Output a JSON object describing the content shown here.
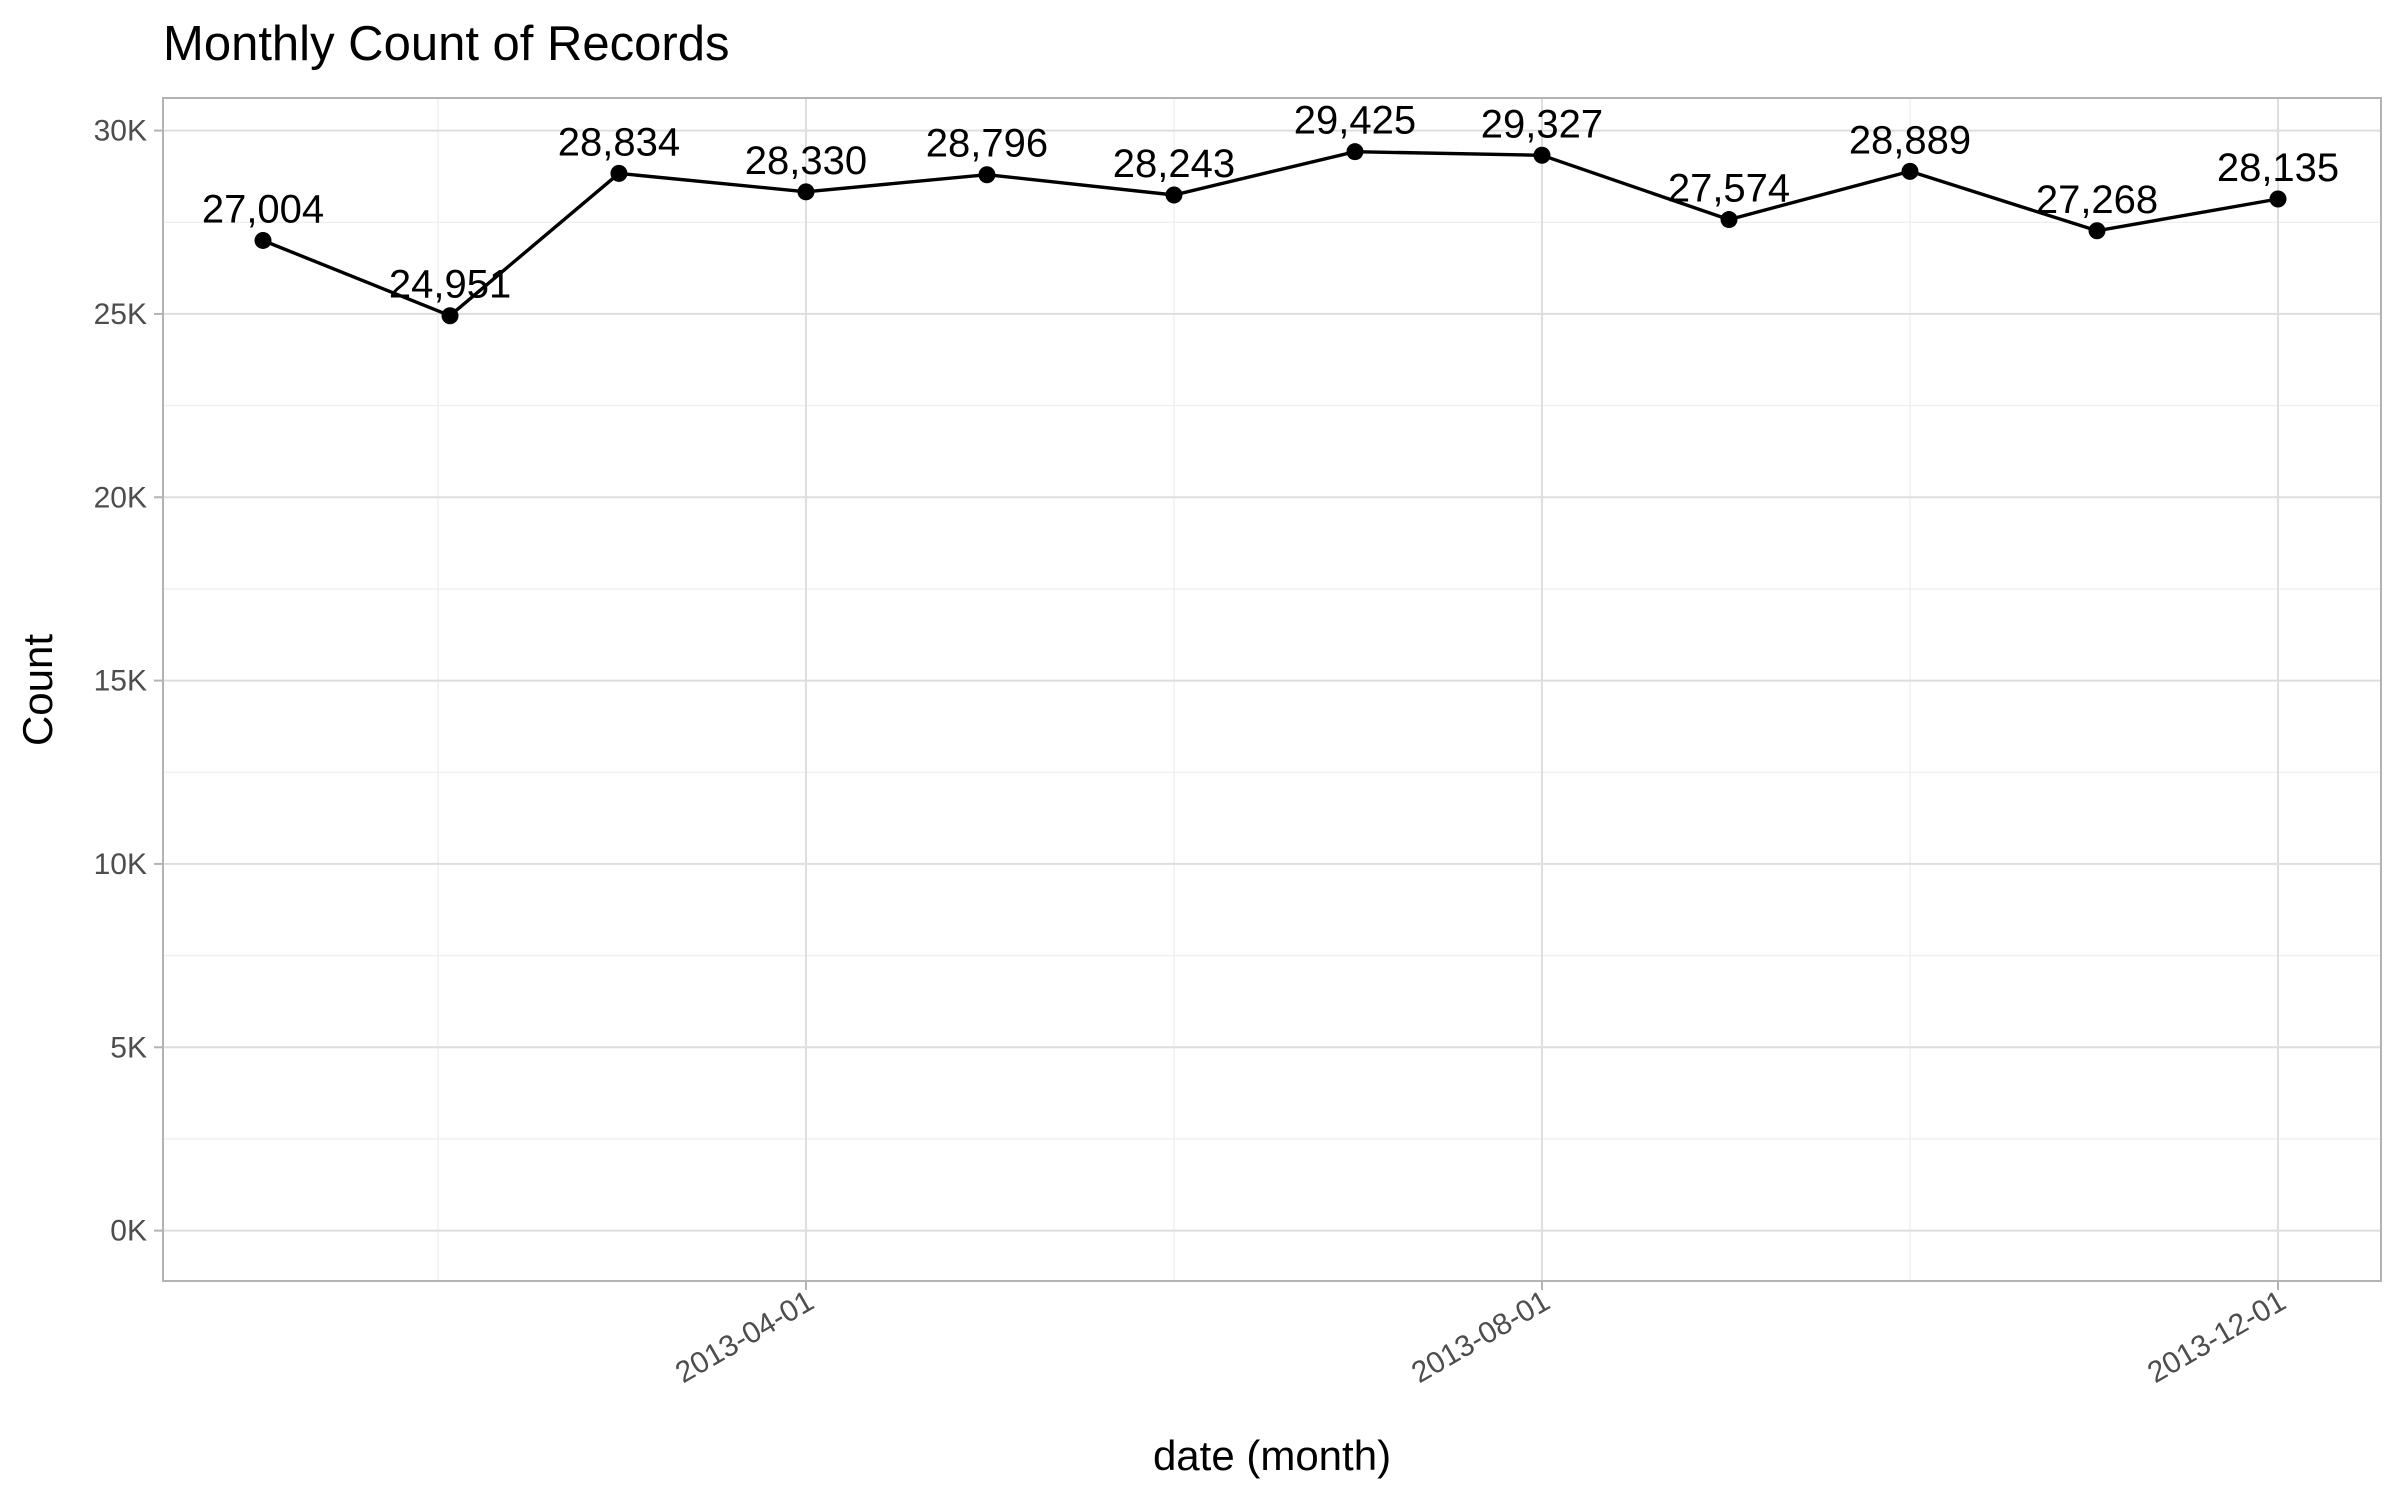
{
  "chart_data": {
    "type": "line",
    "title": "Monthly Count of Records",
    "xlabel": "date (month)",
    "ylabel": "Count",
    "x": [
      "2013-01-01",
      "2013-02-01",
      "2013-03-01",
      "2013-04-01",
      "2013-05-01",
      "2013-06-01",
      "2013-07-01",
      "2013-08-01",
      "2013-09-01",
      "2013-10-01",
      "2013-11-01",
      "2013-12-01"
    ],
    "values": [
      27004,
      24951,
      28834,
      28330,
      28796,
      28243,
      29425,
      29327,
      27574,
      28889,
      27268,
      28135
    ],
    "data_labels": [
      "27,004",
      "24,951",
      "28,834",
      "28,330",
      "28,796",
      "28,243",
      "29,425",
      "29,327",
      "27,574",
      "28,889",
      "27,268",
      "28,135"
    ],
    "ylim": [
      0,
      30000
    ],
    "y_ticks": [
      0,
      5000,
      10000,
      15000,
      20000,
      25000,
      30000
    ],
    "y_tick_labels": [
      "0K",
      "5K",
      "10K",
      "15K",
      "20K",
      "25K",
      "30K"
    ],
    "x_ticks": [
      "2013-04-01",
      "2013-08-01",
      "2013-12-01"
    ],
    "x_tick_labels": [
      "2013-04-01",
      "2013-08-01",
      "2013-12-01"
    ],
    "grid": true,
    "legend": "none",
    "line_color": "#000000",
    "point_color": "#000000"
  }
}
